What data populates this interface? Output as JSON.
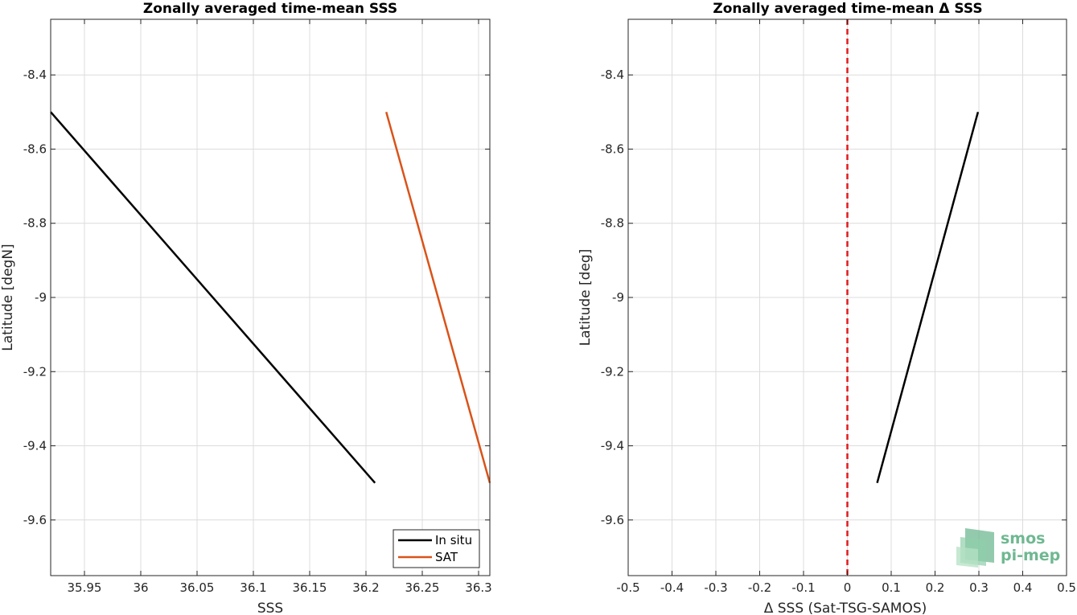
{
  "chart_data": [
    {
      "type": "line",
      "title": "Zonally averaged time-mean SSS",
      "xlabel": "SSS",
      "ylabel": "Latitude [degN]",
      "xlim": [
        35.92,
        36.31
      ],
      "ylim": [
        -9.75,
        -8.25
      ],
      "xticks": [
        35.95,
        36,
        36.05,
        36.1,
        36.15,
        36.2,
        36.25,
        36.3
      ],
      "xtick_labels": [
        "35.95",
        "36",
        "36.05",
        "36.1",
        "36.15",
        "36.2",
        "36.25",
        "36.3"
      ],
      "yticks": [
        -8.4,
        -8.6,
        -8.8,
        -9,
        -9.2,
        -9.4,
        -9.6
      ],
      "ytick_labels": [
        "-8.4",
        "-8.6",
        "-8.8",
        "-9",
        "-9.2",
        "-9.4",
        "-9.6"
      ],
      "grid": true,
      "legend_position": "bottom-right",
      "series": [
        {
          "name": "In situ",
          "color": "#000000",
          "x": [
            35.92,
            36.208
          ],
          "y": [
            -8.5,
            -9.5
          ]
        },
        {
          "name": "SAT",
          "color": "#d95319",
          "x": [
            36.218,
            36.31
          ],
          "y": [
            -8.5,
            -9.5
          ]
        }
      ]
    },
    {
      "type": "line",
      "title": "Zonally averaged time-mean Δ SSS",
      "xlabel": "Δ SSS (Sat-TSG-SAMOS)",
      "ylabel": "Latitude [deg]",
      "xlim": [
        -0.5,
        0.5
      ],
      "ylim": [
        -9.75,
        -8.25
      ],
      "xticks": [
        -0.5,
        -0.4,
        -0.3,
        -0.2,
        -0.1,
        0,
        0.1,
        0.2,
        0.3,
        0.4,
        0.5
      ],
      "xtick_labels": [
        "-0.5",
        "-0.4",
        "-0.3",
        "-0.2",
        "-0.1",
        "0",
        "0.1",
        "0.2",
        "0.3",
        "0.4",
        "0.5"
      ],
      "yticks": [
        -8.4,
        -8.6,
        -8.8,
        -9,
        -9.2,
        -9.4,
        -9.6
      ],
      "ytick_labels": [
        "-8.4",
        "-8.6",
        "-8.8",
        "-9",
        "-9.2",
        "-9.4",
        "-9.6"
      ],
      "grid": true,
      "reference_line": {
        "x": 0,
        "color": "#e31a1c",
        "style": "dashed"
      },
      "series": [
        {
          "color": "#000000",
          "x": [
            0.298,
            0.068
          ],
          "y": [
            -8.5,
            -9.5
          ]
        }
      ]
    }
  ],
  "logo": {
    "line1": "smos",
    "line2": "pi-mep",
    "color": "#6fb891"
  }
}
